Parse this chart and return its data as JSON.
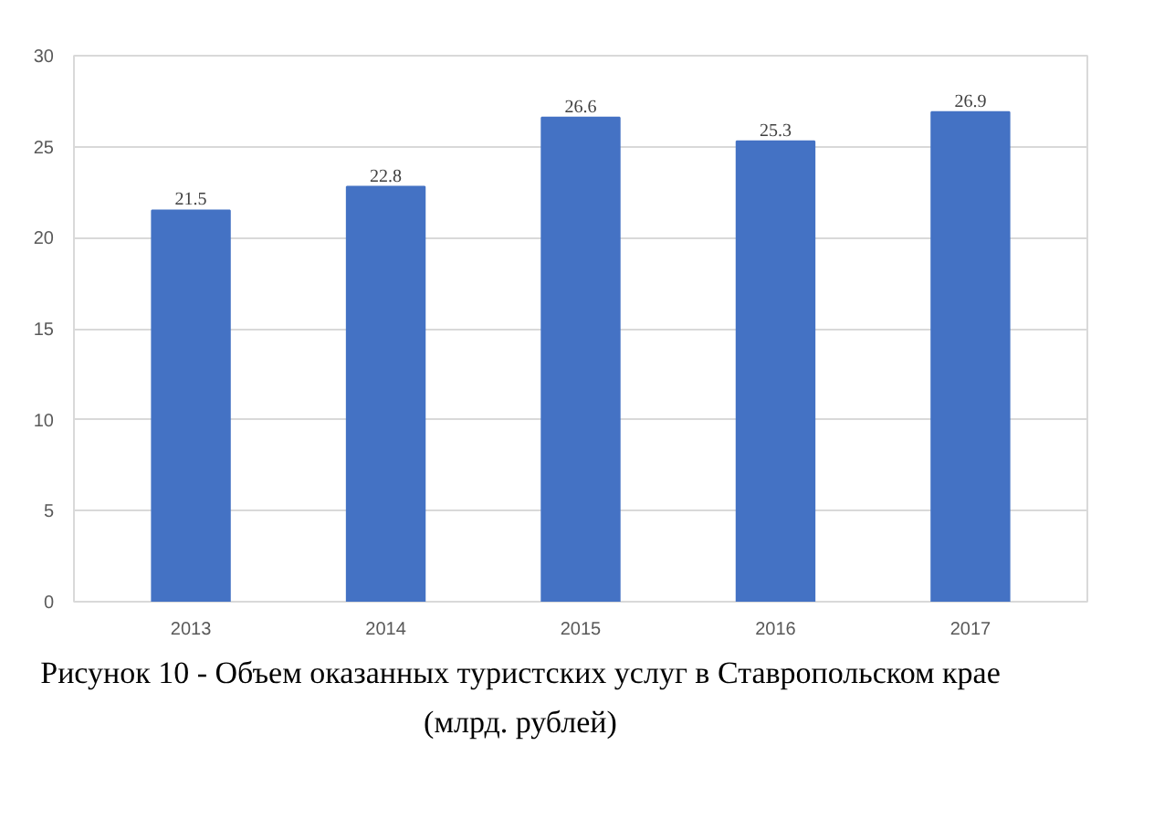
{
  "chart_data": {
    "type": "bar",
    "title": "Рисунок 10 - Объем оказанных туристских услуг в Ставропольском крае (млрд. рублей)",
    "categories": [
      "2013",
      "2014",
      "2015",
      "2016",
      "2017"
    ],
    "values": [
      21.5,
      22.8,
      26.6,
      25.3,
      26.9
    ],
    "color": "#4472c4",
    "ylim": [
      0,
      30
    ],
    "yticks": [
      0,
      5,
      10,
      15,
      20,
      25,
      30
    ],
    "grid": "y",
    "data_labels": true
  }
}
